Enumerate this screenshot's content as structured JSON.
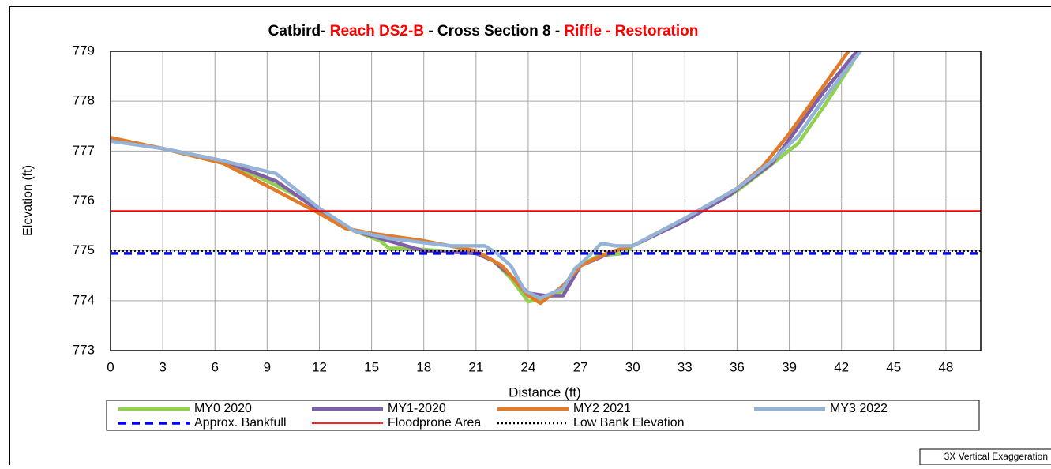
{
  "chart_data": {
    "type": "line",
    "title": [
      {
        "text": "Catbird- ",
        "color": "#000000"
      },
      {
        "text": "Reach DS2-B",
        "color": "#ff0000"
      },
      {
        "text": " - Cross Section 8 - ",
        "color": "#000000"
      },
      {
        "text": "Riffle - Restoration",
        "color": "#ff0000"
      }
    ],
    "x_label": "Distance (ft)",
    "y_label": "Elevation (ft)",
    "footnote": "3X Vertical Exaggeration",
    "xlim": [
      0,
      50
    ],
    "ylim": [
      773,
      779
    ],
    "xticks": [
      0,
      3,
      6,
      9,
      12,
      15,
      18,
      21,
      24,
      27,
      30,
      33,
      36,
      39,
      42,
      45,
      48
    ],
    "yticks": [
      773,
      774,
      775,
      776,
      777,
      778,
      779
    ],
    "grid": true,
    "series": [
      {
        "name": "MY0 2020",
        "color": "#92d050",
        "style": "solid",
        "x": [
          0,
          3,
          6.5,
          9,
          11,
          12.5,
          14,
          15.5,
          16,
          17,
          19,
          21,
          22,
          23,
          24,
          25,
          26,
          27,
          28,
          29.5,
          30,
          33,
          36,
          37.5,
          39.5,
          41,
          42.5,
          43
        ],
        "values": [
          777.25,
          777.05,
          776.8,
          776.4,
          776.05,
          775.7,
          775.4,
          775.2,
          775.05,
          775.05,
          775.0,
          774.95,
          774.8,
          774.45,
          773.98,
          774.05,
          774.2,
          774.7,
          774.9,
          774.95,
          775.1,
          775.6,
          776.2,
          776.6,
          777.15,
          777.9,
          778.7,
          779.0
        ]
      },
      {
        "name": "MY1-2020",
        "color": "#7f5fa8",
        "style": "solid",
        "x": [
          0,
          3,
          6.5,
          9.5,
          12,
          14,
          16,
          18,
          21,
          22,
          23,
          24,
          25,
          26,
          27,
          29,
          30,
          33,
          35.5,
          38,
          41,
          43
        ],
        "values": [
          777.25,
          777.05,
          776.8,
          776.4,
          775.8,
          775.4,
          775.2,
          775.0,
          774.95,
          774.8,
          774.5,
          774.15,
          774.1,
          774.1,
          774.7,
          775.0,
          775.1,
          775.6,
          776.1,
          776.75,
          778.2,
          779.05
        ]
      },
      {
        "name": "MY2 2021",
        "color": "#e07b2a",
        "style": "solid",
        "x": [
          0,
          3,
          6.5,
          9,
          12,
          13.5,
          15,
          18,
          21,
          22.5,
          24,
          24.7,
          26,
          27,
          28.5,
          30,
          33,
          36,
          37.5,
          39,
          42.5
        ],
        "values": [
          777.27,
          777.05,
          776.75,
          776.3,
          775.75,
          775.45,
          775.35,
          775.2,
          775.0,
          774.7,
          774.1,
          773.95,
          774.3,
          774.7,
          774.95,
          775.1,
          775.65,
          776.25,
          776.7,
          777.35,
          779.05
        ]
      },
      {
        "name": "MY3 2022",
        "color": "#95b3d7",
        "style": "solid",
        "x": [
          0,
          3,
          6.5,
          9.5,
          12,
          14,
          16,
          19.5,
          21.5,
          22.2,
          23,
          23.8,
          24.7,
          26,
          26.7,
          27.2,
          28.2,
          29,
          30,
          33,
          36,
          38,
          39.5,
          41,
          43.3
        ],
        "values": [
          777.2,
          777.05,
          776.8,
          776.55,
          775.85,
          775.4,
          775.25,
          775.1,
          775.1,
          774.95,
          774.7,
          774.2,
          774.05,
          774.25,
          774.65,
          774.8,
          775.15,
          775.1,
          775.1,
          775.65,
          776.25,
          776.8,
          777.3,
          778.05,
          779.1
        ]
      },
      {
        "name": "Approx. Bankfull",
        "color": "#0000ff",
        "style": "dashed",
        "x": [
          0,
          50
        ],
        "values": [
          774.95,
          774.95
        ]
      },
      {
        "name": "Floodprone Area",
        "color": "#ff0000",
        "style": "thin",
        "x": [
          0,
          50
        ],
        "values": [
          775.8,
          775.8
        ]
      },
      {
        "name": "Low Bank Elevation",
        "color": "#000000",
        "style": "dotted",
        "x": [
          0,
          50
        ],
        "values": [
          775.0,
          775.0
        ]
      }
    ]
  }
}
